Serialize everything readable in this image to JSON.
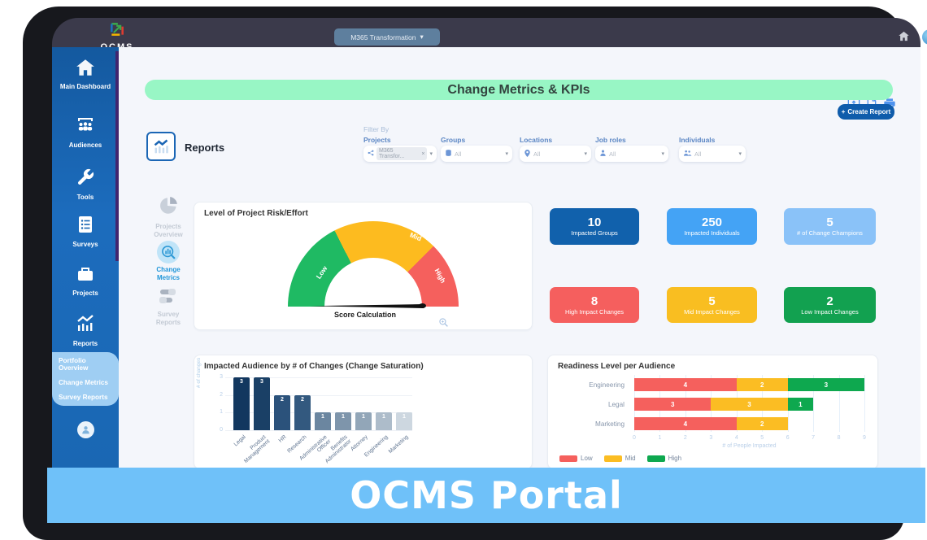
{
  "frame": {
    "banner_text": "OCMS Portal",
    "banner_color": "#6fc1f9"
  },
  "topbar": {
    "brand": "OCMS",
    "project_selector": "M365 Transformation",
    "icons": {
      "home": "home-icon",
      "globe": "globe-icon"
    }
  },
  "sidebar": {
    "items": [
      {
        "label": "Main Dashboard",
        "icon": "home"
      },
      {
        "label": "Audiences",
        "icon": "people"
      },
      {
        "label": "Tools",
        "icon": "wrench"
      },
      {
        "label": "Surveys",
        "icon": "clipboard-list"
      },
      {
        "label": "Projects",
        "icon": "briefcase"
      },
      {
        "label": "Reports",
        "icon": "bar-chart"
      }
    ],
    "submenu": {
      "items": [
        {
          "label": "Portfolio Overview"
        },
        {
          "label": "Change Metrics"
        },
        {
          "label": "Survey Reports"
        }
      ],
      "active": "Change Metrics"
    }
  },
  "toolbar": {
    "export_icons": [
      "screen-share",
      "pdf-export",
      "print"
    ],
    "create_report_plus": "+",
    "create_report_label": "Create Report"
  },
  "page": {
    "title": "Change Metrics & KPIs",
    "section_title": "Reports"
  },
  "filters": {
    "heading": "Filter By",
    "projects": {
      "label": "Projects",
      "chip": "M365 Transfor...",
      "chip_remove": "×",
      "icon": "share"
    },
    "groups": {
      "label": "Groups",
      "value": "All",
      "icon": "database"
    },
    "locations": {
      "label": "Locations",
      "value": "All",
      "icon": "map-pin"
    },
    "job_roles": {
      "label": "Job roles",
      "value": "All",
      "icon": "person"
    },
    "individuals": {
      "label": "Individuals",
      "value": "All",
      "icon": "people"
    }
  },
  "rail": {
    "items": [
      {
        "label": "Projects Overview",
        "icon": "pie-chart",
        "active": false
      },
      {
        "label": "Change Metrics",
        "icon": "chart-magnifier",
        "active": true
      },
      {
        "label": "Survey Reports",
        "icon": "sliders",
        "active": false
      }
    ]
  },
  "kpis": {
    "cards": [
      {
        "value": "10",
        "label": "Impacted Groups",
        "color": "#1161ac"
      },
      {
        "value": "250",
        "label": "Impacted Individuals",
        "color": "#44a3f5"
      },
      {
        "value": "5",
        "label": "# of Change Champions",
        "color": "#8ac2f8"
      },
      {
        "value": "8",
        "label": "High Impact Changes",
        "color": "#f55f5e"
      },
      {
        "value": "5",
        "label": "Mid Impact Changes",
        "color": "#f9be21"
      },
      {
        "value": "2",
        "label": "Low Impact Changes",
        "color": "#12a150"
      }
    ]
  },
  "chart_data": [
    {
      "type": "gauge",
      "title": "Level of Project Risk/Effort",
      "segments": [
        {
          "label": "Low",
          "color": "#1fba63",
          "share": 0.35
        },
        {
          "label": "Mid",
          "color": "#fdbb1f",
          "share": 0.4
        },
        {
          "label": "High",
          "color": "#f5605d",
          "share": 0.25
        }
      ],
      "needle_label": "Score Calculation",
      "needle_points_to": "Low"
    },
    {
      "type": "bar",
      "title": "Impacted Audience by # of Changes (Change Saturation)",
      "categories": [
        "Legal",
        "Product Management",
        "HR",
        "Research",
        "Administrative Officer",
        "Benefits Administrator",
        "Attorney",
        "Engineering",
        "Marketing"
      ],
      "values": [
        3,
        3,
        2,
        2,
        1,
        1,
        1,
        1,
        1
      ],
      "ylabel": "# of changes",
      "xlabel": "",
      "ylim": [
        0,
        3
      ],
      "y_ticks": [
        0,
        1,
        2,
        3
      ],
      "bar_colors": [
        "#12375f",
        "#1a4066",
        "#2b527b",
        "#33597f",
        "#6b86a0",
        "#7e95ab",
        "#92a6b8",
        "#adbcca",
        "#cdd7e0"
      ]
    },
    {
      "type": "bar-horizontal-stacked",
      "title": "Readiness Level per Audience",
      "categories": [
        "Engineering",
        "Legal",
        "Marketing"
      ],
      "series": [
        {
          "name": "Low",
          "color": "#f5605d",
          "values": [
            4,
            3,
            4
          ]
        },
        {
          "name": "Mid",
          "color": "#fbbd23",
          "values": [
            2,
            3,
            2
          ]
        },
        {
          "name": "High",
          "color": "#0ea84f",
          "values": [
            3,
            1,
            0
          ]
        }
      ],
      "xlabel": "# of People Impacted",
      "xlim": [
        0,
        9
      ],
      "x_ticks": [
        0,
        1,
        2,
        3,
        4,
        5,
        6,
        7,
        8,
        9
      ],
      "legend": [
        "Low",
        "Mid",
        "High"
      ],
      "legend_position": "bottom-left"
    }
  ]
}
